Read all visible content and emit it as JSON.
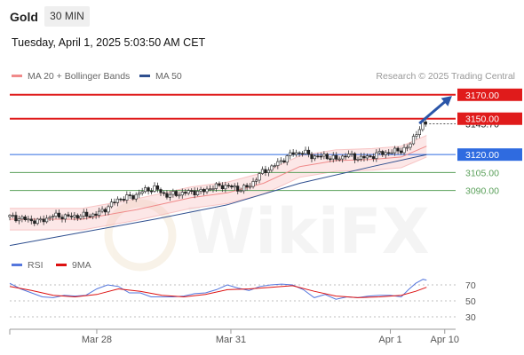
{
  "header": {
    "symbol": "Gold",
    "timeframe": "30 MIN",
    "datetime": "Tuesday, April 1, 2025 5:03:50 AM CET"
  },
  "legend": {
    "ma20": {
      "label": "MA 20 + Bollinger Bands",
      "color": "#f08a8a"
    },
    "ma50": {
      "label": "MA 50",
      "color": "#2f4f8f"
    }
  },
  "credit": "Research © 2025 Trading Central",
  "watermark": "WikiFX",
  "rsi_legend": {
    "rsi": {
      "label": "RSI",
      "color": "#5577dd"
    },
    "ma": {
      "label": "9MA",
      "color": "#dd1111"
    }
  },
  "chart_data": {
    "type": "candlestick",
    "price_axis": {
      "range": [
        3040,
        3178
      ],
      "position": "right"
    },
    "x_axis": {
      "ticks": [
        {
          "label": "Mar 28",
          "t": 24
        },
        {
          "label": "Mar 31",
          "t": 61
        },
        {
          "label": "Apr 1",
          "t": 105
        },
        {
          "label": "Apr 10",
          "t": 120
        }
      ]
    },
    "levels": [
      {
        "value": 3170,
        "label": "3170.00",
        "color": "#e01b1b",
        "kind": "resistance"
      },
      {
        "value": 3150,
        "label": "3150.00",
        "color": "#e01b1b",
        "kind": "resistance"
      },
      {
        "value": 3120,
        "label": "3120.00",
        "color": "#2f6be0",
        "kind": "pivot"
      },
      {
        "value": 3105,
        "label": "3105.00",
        "color": "#5aa05a",
        "kind": "support"
      },
      {
        "value": 3090,
        "label": "3090.00",
        "color": "#5aa05a",
        "kind": "support"
      }
    ],
    "current_price": {
      "value": 3145.7,
      "label": "3145.70"
    },
    "arrow": {
      "from": {
        "t": 113,
        "price": 3146
      },
      "to": {
        "t": 122,
        "price": 3169
      },
      "color": "#2a55a8"
    },
    "price_path": [
      [
        0,
        3068
      ],
      [
        4,
        3066
      ],
      [
        8,
        3064
      ],
      [
        12,
        3069
      ],
      [
        16,
        3068
      ],
      [
        20,
        3069
      ],
      [
        24,
        3070
      ],
      [
        27,
        3076
      ],
      [
        30,
        3083
      ],
      [
        34,
        3085
      ],
      [
        37,
        3090
      ],
      [
        40,
        3092
      ],
      [
        43,
        3086
      ],
      [
        46,
        3087
      ],
      [
        50,
        3089
      ],
      [
        53,
        3089
      ],
      [
        56,
        3093
      ],
      [
        60,
        3094
      ],
      [
        63,
        3091
      ],
      [
        66,
        3093
      ],
      [
        69,
        3104
      ],
      [
        72,
        3109
      ],
      [
        75,
        3115
      ],
      [
        78,
        3121
      ],
      [
        81,
        3122
      ],
      [
        84,
        3118
      ],
      [
        87,
        3119
      ],
      [
        90,
        3116
      ],
      [
        93,
        3120
      ],
      [
        96,
        3117
      ],
      [
        99,
        3118
      ],
      [
        102,
        3121
      ],
      [
        105,
        3122
      ],
      [
        108,
        3124
      ],
      [
        110,
        3126
      ],
      [
        112,
        3138
      ],
      [
        114,
        3145
      ],
      [
        115,
        3146
      ]
    ],
    "ma20_path": [
      [
        0,
        3066
      ],
      [
        20,
        3066
      ],
      [
        35,
        3074
      ],
      [
        50,
        3084
      ],
      [
        60,
        3088
      ],
      [
        70,
        3096
      ],
      [
        80,
        3110
      ],
      [
        90,
        3115
      ],
      [
        100,
        3116
      ],
      [
        108,
        3118
      ],
      [
        115,
        3127
      ]
    ],
    "ma50_path": [
      [
        0,
        3044
      ],
      [
        20,
        3055
      ],
      [
        40,
        3066
      ],
      [
        60,
        3078
      ],
      [
        80,
        3096
      ],
      [
        100,
        3110
      ],
      [
        115,
        3120
      ]
    ],
    "bollinger_width": 9,
    "rsi": {
      "levels": [
        70,
        50,
        30
      ],
      "range": [
        20,
        80
      ],
      "rsi_path": [
        [
          0,
          72
        ],
        [
          3,
          65
        ],
        [
          6,
          60
        ],
        [
          9,
          55
        ],
        [
          12,
          54
        ],
        [
          15,
          57
        ],
        [
          18,
          56
        ],
        [
          21,
          57
        ],
        [
          24,
          65
        ],
        [
          27,
          70
        ],
        [
          30,
          68
        ],
        [
          33,
          60
        ],
        [
          36,
          60
        ],
        [
          39,
          55
        ],
        [
          42,
          55
        ],
        [
          45,
          55
        ],
        [
          48,
          56
        ],
        [
          51,
          59
        ],
        [
          54,
          60
        ],
        [
          57,
          64
        ],
        [
          60,
          70
        ],
        [
          63,
          66
        ],
        [
          66,
          63
        ],
        [
          69,
          68
        ],
        [
          72,
          70
        ],
        [
          75,
          71
        ],
        [
          78,
          70
        ],
        [
          81,
          64
        ],
        [
          84,
          54
        ],
        [
          87,
          58
        ],
        [
          90,
          52
        ],
        [
          93,
          55
        ],
        [
          96,
          54
        ],
        [
          99,
          56
        ],
        [
          102,
          57
        ],
        [
          105,
          57
        ],
        [
          108,
          55
        ],
        [
          110,
          64
        ],
        [
          112,
          72
        ],
        [
          114,
          77
        ],
        [
          115,
          76
        ]
      ],
      "ma_path": [
        [
          0,
          68
        ],
        [
          6,
          63
        ],
        [
          12,
          57
        ],
        [
          18,
          55
        ],
        [
          24,
          58
        ],
        [
          30,
          65
        ],
        [
          36,
          62
        ],
        [
          42,
          57
        ],
        [
          48,
          55
        ],
        [
          54,
          58
        ],
        [
          60,
          64
        ],
        [
          66,
          65
        ],
        [
          72,
          67
        ],
        [
          78,
          69
        ],
        [
          84,
          62
        ],
        [
          90,
          56
        ],
        [
          96,
          54
        ],
        [
          102,
          55
        ],
        [
          108,
          57
        ],
        [
          112,
          62
        ],
        [
          115,
          67
        ]
      ]
    }
  }
}
